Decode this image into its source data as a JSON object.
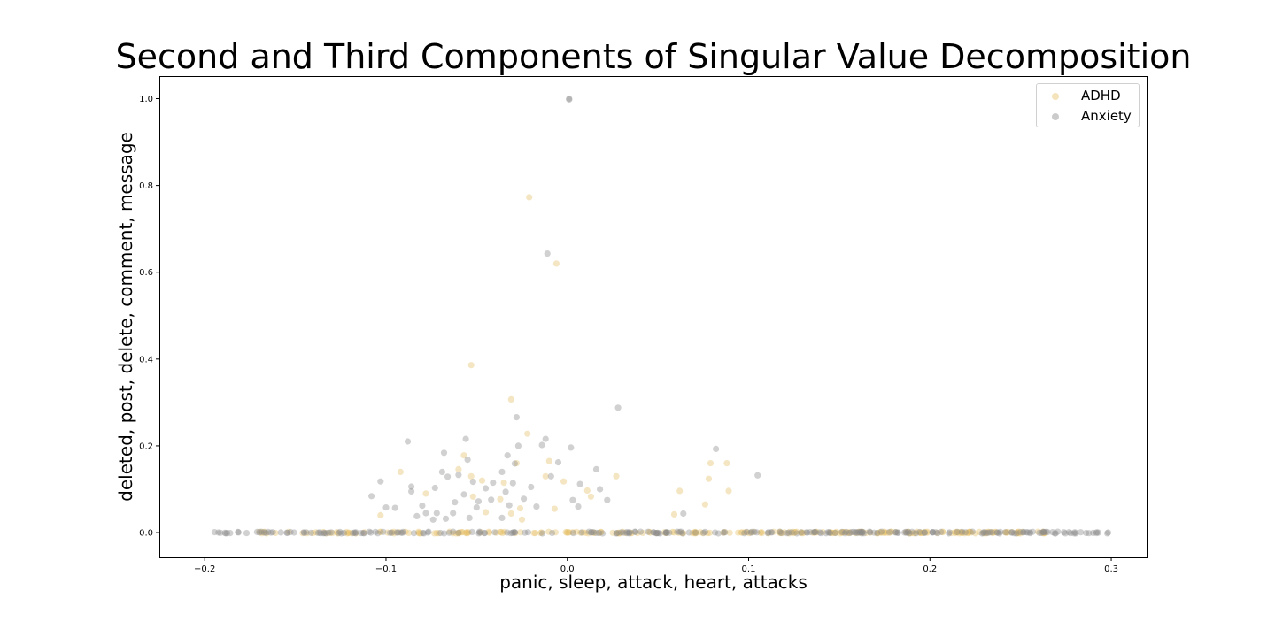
{
  "chart_data": {
    "type": "scatter",
    "title": "Second and Third Components of Singular Value Decomposition",
    "xlabel": "panic, sleep, attack, heart, attacks",
    "ylabel": "deleted, post, delete, comment, message",
    "xlim": [
      -0.225,
      0.32
    ],
    "ylim": [
      -0.057,
      1.052
    ],
    "x_ticks": [
      -0.2,
      -0.1,
      0.0,
      0.1,
      0.2,
      0.3
    ],
    "x_tick_labels": [
      "−0.2",
      "−0.1",
      "0.0",
      "0.1",
      "0.2",
      "0.3"
    ],
    "y_ticks": [
      0.0,
      0.2,
      0.4,
      0.6,
      0.8,
      1.0
    ],
    "y_tick_labels": [
      "0.0",
      "0.2",
      "0.4",
      "0.6",
      "0.8",
      "1.0"
    ],
    "grid": false,
    "legend_position": "top-right",
    "series": [
      {
        "name": "ADHD",
        "color": "#e6c069",
        "baseline_band": {
          "y": 0.0,
          "x_range": [
            -0.17,
            0.265
          ]
        },
        "points": [
          [
            -0.021,
            0.773
          ],
          [
            -0.006,
            0.62
          ],
          [
            -0.053,
            0.386
          ],
          [
            -0.031,
            0.307
          ],
          [
            -0.022,
            0.228
          ],
          [
            -0.01,
            0.165
          ],
          [
            0.079,
            0.16
          ],
          [
            0.088,
            0.16
          ],
          [
            -0.028,
            0.16
          ],
          [
            -0.057,
            0.178
          ],
          [
            -0.092,
            0.14
          ],
          [
            -0.047,
            0.12
          ],
          [
            -0.035,
            0.115
          ],
          [
            -0.012,
            0.13
          ],
          [
            0.027,
            0.13
          ],
          [
            0.078,
            0.124
          ],
          [
            -0.002,
            0.118
          ],
          [
            -0.052,
            0.083
          ],
          [
            -0.037,
            0.077
          ],
          [
            -0.078,
            0.09
          ],
          [
            0.062,
            0.096
          ],
          [
            0.089,
            0.096
          ],
          [
            0.011,
            0.097
          ],
          [
            0.013,
            0.083
          ],
          [
            -0.06,
            0.146
          ],
          [
            -0.026,
            0.056
          ],
          [
            -0.045,
            0.047
          ],
          [
            -0.103,
            0.04
          ],
          [
            0.059,
            0.042
          ],
          [
            -0.025,
            0.03
          ],
          [
            -0.007,
            0.055
          ],
          [
            0.076,
            0.065
          ],
          [
            -0.031,
            0.044
          ],
          [
            -0.053,
            0.13
          ]
        ]
      },
      {
        "name": "Anxiety",
        "color": "#8c8c8c",
        "baseline_band": {
          "y": 0.0,
          "x_range": [
            -0.195,
            0.3
          ]
        },
        "points": [
          [
            0.001,
            1.0
          ],
          [
            0.001,
            0.998
          ],
          [
            -0.011,
            0.643
          ],
          [
            0.028,
            0.288
          ],
          [
            -0.028,
            0.266
          ],
          [
            -0.088,
            0.21
          ],
          [
            -0.056,
            0.216
          ],
          [
            -0.012,
            0.216
          ],
          [
            -0.027,
            0.2
          ],
          [
            -0.014,
            0.202
          ],
          [
            0.002,
            0.196
          ],
          [
            0.082,
            0.193
          ],
          [
            -0.068,
            0.184
          ],
          [
            -0.033,
            0.178
          ],
          [
            -0.055,
            0.168
          ],
          [
            -0.029,
            0.159
          ],
          [
            -0.005,
            0.162
          ],
          [
            0.016,
            0.146
          ],
          [
            -0.036,
            0.14
          ],
          [
            -0.069,
            0.14
          ],
          [
            -0.009,
            0.13
          ],
          [
            0.105,
            0.132
          ],
          [
            -0.103,
            0.118
          ],
          [
            -0.066,
            0.129
          ],
          [
            -0.06,
            0.133
          ],
          [
            -0.052,
            0.117
          ],
          [
            -0.03,
            0.114
          ],
          [
            -0.041,
            0.115
          ],
          [
            -0.02,
            0.105
          ],
          [
            0.007,
            0.112
          ],
          [
            -0.086,
            0.106
          ],
          [
            -0.108,
            0.084
          ],
          [
            -0.073,
            0.103
          ],
          [
            -0.045,
            0.102
          ],
          [
            -0.057,
            0.088
          ],
          [
            -0.034,
            0.094
          ],
          [
            0.018,
            0.1
          ],
          [
            -0.095,
            0.057
          ],
          [
            -0.1,
            0.058
          ],
          [
            -0.08,
            0.062
          ],
          [
            -0.062,
            0.07
          ],
          [
            -0.049,
            0.072
          ],
          [
            -0.042,
            0.076
          ],
          [
            -0.017,
            0.06
          ],
          [
            0.006,
            0.06
          ],
          [
            0.022,
            0.075
          ],
          [
            -0.078,
            0.045
          ],
          [
            -0.072,
            0.045
          ],
          [
            -0.063,
            0.045
          ],
          [
            -0.054,
            0.034
          ],
          [
            -0.083,
            0.038
          ],
          [
            -0.074,
            0.03
          ],
          [
            -0.036,
            0.034
          ],
          [
            0.064,
            0.044
          ],
          [
            -0.086,
            0.095
          ],
          [
            -0.032,
            0.063
          ],
          [
            -0.024,
            0.078
          ],
          [
            0.003,
            0.075
          ],
          [
            -0.067,
            0.032
          ],
          [
            -0.05,
            0.058
          ]
        ]
      }
    ]
  }
}
